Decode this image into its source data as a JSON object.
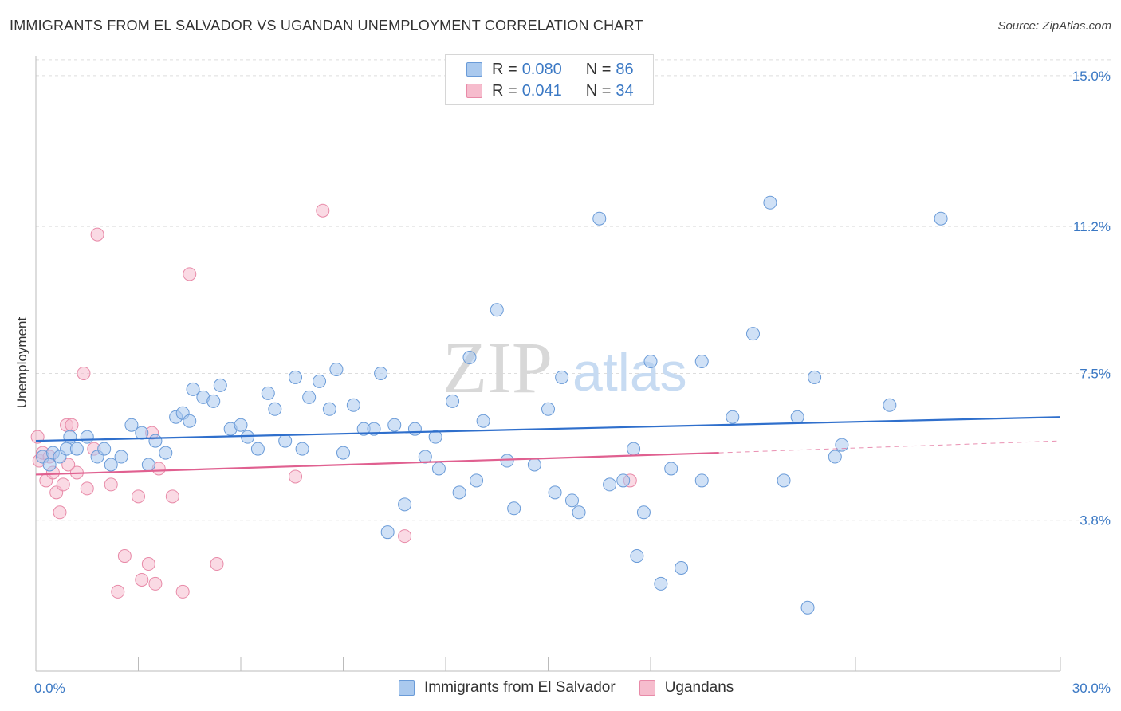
{
  "title": "IMMIGRANTS FROM EL SALVADOR VS UGANDAN UNEMPLOYMENT CORRELATION CHART",
  "source": "Source: ZipAtlas.com",
  "watermark": {
    "zip": "ZIP",
    "atlas": "atlas"
  },
  "colors": {
    "blue_fill": "#aac9ee",
    "blue_stroke": "#6a9bd8",
    "blue_line": "#2f6fcc",
    "pink_fill": "#f6bccd",
    "pink_stroke": "#e88aa8",
    "pink_line": "#e06090",
    "tick_text": "#3a78c4",
    "grid": "#dddddd"
  },
  "legend": {
    "series": [
      {
        "r_label": "R =",
        "r_value": "0.080",
        "n_label": "N =",
        "n_value": "86"
      },
      {
        "r_label": "R =",
        "r_value": "0.041",
        "n_label": "N =",
        "n_value": "34"
      }
    ],
    "bottom": [
      "Immigrants from El Salvador",
      "Ugandans"
    ]
  },
  "chart_data": {
    "type": "scatter",
    "title": "IMMIGRANTS FROM EL SALVADOR VS UGANDAN UNEMPLOYMENT CORRELATION CHART",
    "xlabel": "",
    "ylabel": "Unemployment",
    "xlim": [
      0,
      30
    ],
    "ylim": [
      0,
      15.5
    ],
    "x_tick_labels": [
      "0.0%",
      "30.0%"
    ],
    "y_ticks": [
      3.8,
      7.5,
      11.2,
      15.0
    ],
    "y_tick_labels": [
      "3.8%",
      "7.5%",
      "11.2%",
      "15.0%"
    ],
    "grid": true,
    "legend_position": "top-center",
    "series": [
      {
        "name": "Immigrants from El Salvador",
        "r": 0.08,
        "n": 86,
        "trend": {
          "x": [
            0,
            30
          ],
          "y": [
            5.8,
            6.4
          ]
        },
        "points": [
          [
            0.2,
            5.4
          ],
          [
            0.4,
            5.2
          ],
          [
            0.5,
            5.5
          ],
          [
            0.7,
            5.4
          ],
          [
            0.9,
            5.6
          ],
          [
            1.0,
            5.9
          ],
          [
            1.2,
            5.6
          ],
          [
            1.5,
            5.9
          ],
          [
            1.8,
            5.4
          ],
          [
            2.0,
            5.6
          ],
          [
            2.2,
            5.2
          ],
          [
            2.5,
            5.4
          ],
          [
            2.8,
            6.2
          ],
          [
            3.1,
            6.0
          ],
          [
            3.3,
            5.2
          ],
          [
            3.5,
            5.8
          ],
          [
            3.8,
            5.5
          ],
          [
            4.1,
            6.4
          ],
          [
            4.3,
            6.5
          ],
          [
            4.5,
            6.3
          ],
          [
            4.6,
            7.1
          ],
          [
            4.9,
            6.9
          ],
          [
            5.2,
            6.8
          ],
          [
            5.4,
            7.2
          ],
          [
            5.7,
            6.1
          ],
          [
            6.0,
            6.2
          ],
          [
            6.2,
            5.9
          ],
          [
            6.5,
            5.6
          ],
          [
            6.8,
            7.0
          ],
          [
            7.0,
            6.6
          ],
          [
            7.3,
            5.8
          ],
          [
            7.6,
            7.4
          ],
          [
            7.8,
            5.6
          ],
          [
            8.0,
            6.9
          ],
          [
            8.3,
            7.3
          ],
          [
            8.6,
            6.6
          ],
          [
            8.8,
            7.6
          ],
          [
            9.0,
            5.5
          ],
          [
            9.3,
            6.7
          ],
          [
            9.6,
            6.1
          ],
          [
            9.9,
            6.1
          ],
          [
            10.1,
            7.5
          ],
          [
            10.3,
            3.5
          ],
          [
            10.5,
            6.2
          ],
          [
            10.8,
            4.2
          ],
          [
            11.1,
            6.1
          ],
          [
            11.4,
            5.4
          ],
          [
            11.7,
            5.9
          ],
          [
            11.8,
            5.1
          ],
          [
            12.2,
            6.8
          ],
          [
            12.4,
            4.5
          ],
          [
            12.7,
            7.9
          ],
          [
            12.9,
            4.8
          ],
          [
            13.1,
            6.3
          ],
          [
            13.5,
            9.1
          ],
          [
            13.8,
            5.3
          ],
          [
            14.0,
            4.1
          ],
          [
            14.6,
            5.2
          ],
          [
            15.0,
            6.6
          ],
          [
            15.2,
            4.5
          ],
          [
            15.4,
            7.4
          ],
          [
            15.7,
            4.3
          ],
          [
            15.9,
            4.0
          ],
          [
            16.5,
            11.4
          ],
          [
            16.8,
            4.7
          ],
          [
            17.2,
            4.8
          ],
          [
            17.5,
            5.6
          ],
          [
            17.6,
            2.9
          ],
          [
            17.8,
            4.0
          ],
          [
            18.0,
            7.8
          ],
          [
            18.3,
            2.2
          ],
          [
            18.6,
            5.1
          ],
          [
            18.9,
            2.6
          ],
          [
            19.5,
            4.8
          ],
          [
            19.5,
            7.8
          ],
          [
            20.4,
            6.4
          ],
          [
            21.0,
            8.5
          ],
          [
            21.5,
            11.8
          ],
          [
            21.9,
            4.8
          ],
          [
            22.3,
            6.4
          ],
          [
            22.6,
            1.6
          ],
          [
            22.8,
            7.4
          ],
          [
            23.4,
            5.4
          ],
          [
            23.6,
            5.7
          ],
          [
            25.0,
            6.7
          ],
          [
            26.5,
            11.4
          ]
        ]
      },
      {
        "name": "Ugandans",
        "r": 0.041,
        "n": 34,
        "trend": {
          "x": [
            0,
            20
          ],
          "y": [
            4.95,
            5.5
          ]
        },
        "trend_dashed": {
          "x": [
            20,
            30
          ],
          "y": [
            5.5,
            5.8
          ]
        },
        "points": [
          [
            0.05,
            5.9
          ],
          [
            0.1,
            5.3
          ],
          [
            0.2,
            5.5
          ],
          [
            0.3,
            4.8
          ],
          [
            0.4,
            5.4
          ],
          [
            0.5,
            5.0
          ],
          [
            0.6,
            4.5
          ],
          [
            0.7,
            4.0
          ],
          [
            0.8,
            4.7
          ],
          [
            0.9,
            6.2
          ],
          [
            0.95,
            5.2
          ],
          [
            1.05,
            6.2
          ],
          [
            1.2,
            5.0
          ],
          [
            1.4,
            7.5
          ],
          [
            1.5,
            4.6
          ],
          [
            1.7,
            5.6
          ],
          [
            1.8,
            11.0
          ],
          [
            2.2,
            4.7
          ],
          [
            2.4,
            2.0
          ],
          [
            2.6,
            2.9
          ],
          [
            3.0,
            4.4
          ],
          [
            3.1,
            2.3
          ],
          [
            3.3,
            2.7
          ],
          [
            3.4,
            6.0
          ],
          [
            3.5,
            2.2
          ],
          [
            3.6,
            5.1
          ],
          [
            4.0,
            4.4
          ],
          [
            4.3,
            2.0
          ],
          [
            4.5,
            10.0
          ],
          [
            5.3,
            2.7
          ],
          [
            7.6,
            4.9
          ],
          [
            8.4,
            11.6
          ],
          [
            10.8,
            3.4
          ],
          [
            17.4,
            4.8
          ]
        ]
      }
    ]
  }
}
